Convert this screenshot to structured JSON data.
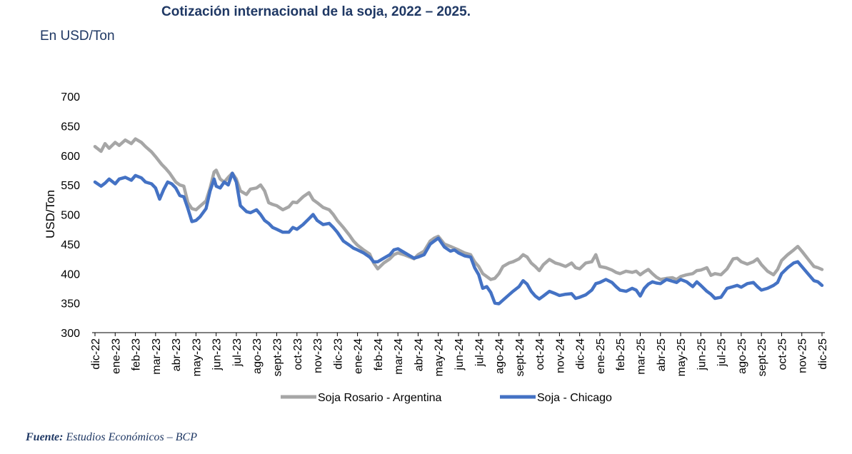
{
  "header": {
    "title": "Cotización internacional de la soja, 2022 – 2025.",
    "subtitle": "En USD/Ton"
  },
  "footer": {
    "source_label": "Fuente:",
    "source_text": " Estudios Económicos – BCP"
  },
  "chart_data": {
    "type": "line",
    "title": "",
    "xlabel": "",
    "ylabel": "USD/Ton",
    "ylim": [
      300,
      700
    ],
    "yticks": [
      300,
      350,
      400,
      450,
      500,
      550,
      600,
      650,
      700
    ],
    "grid": false,
    "legend_position": "bottom",
    "x_categories": [
      "dic-22",
      "ene-23",
      "feb-23",
      "mar-23",
      "abr-23",
      "may-23",
      "jun-23",
      "jul-23",
      "ago-23",
      "sept-23",
      "oct-23",
      "nov-23",
      "dic-23",
      "ene-24",
      "feb-24",
      "mar-24",
      "abr-24",
      "may-24",
      "jun-24",
      "jul-24",
      "ago-24",
      "sept-24",
      "oct-24",
      "nov-24",
      "dic-24",
      "ene-25",
      "feb-25",
      "mar-25",
      "abr-25",
      "may-25",
      "jun-25",
      "jul-25",
      "ago-25",
      "sept-25",
      "oct-25",
      "nov-25",
      "dic-25"
    ],
    "series": [
      {
        "name": "Soja Rosario - Argentina",
        "color": "#a6a6a6",
        "values": [
          [
            0,
            615
          ],
          [
            0.3,
            607
          ],
          [
            0.5,
            620
          ],
          [
            0.7,
            612
          ],
          [
            1,
            622
          ],
          [
            1.2,
            617
          ],
          [
            1.5,
            626
          ],
          [
            1.8,
            620
          ],
          [
            2,
            628
          ],
          [
            2.3,
            622
          ],
          [
            2.5,
            615
          ],
          [
            2.8,
            606
          ],
          [
            3,
            598
          ],
          [
            3.3,
            585
          ],
          [
            3.5,
            578
          ],
          [
            3.7,
            570
          ],
          [
            4,
            555
          ],
          [
            4.2,
            550
          ],
          [
            4.4,
            548
          ],
          [
            4.6,
            520
          ],
          [
            4.8,
            510
          ],
          [
            5,
            508
          ],
          [
            5.2,
            514
          ],
          [
            5.5,
            523
          ],
          [
            5.7,
            545
          ],
          [
            5.9,
            572
          ],
          [
            6,
            575
          ],
          [
            6.2,
            560
          ],
          [
            6.4,
            555
          ],
          [
            6.6,
            563
          ],
          [
            6.8,
            570
          ],
          [
            7,
            560
          ],
          [
            7.2,
            540
          ],
          [
            7.5,
            534
          ],
          [
            7.7,
            543
          ],
          [
            8,
            545
          ],
          [
            8.2,
            550
          ],
          [
            8.4,
            540
          ],
          [
            8.6,
            520
          ],
          [
            8.8,
            517
          ],
          [
            9,
            515
          ],
          [
            9.3,
            508
          ],
          [
            9.6,
            513
          ],
          [
            9.8,
            521
          ],
          [
            10,
            520
          ],
          [
            10.3,
            530
          ],
          [
            10.6,
            537
          ],
          [
            10.8,
            525
          ],
          [
            11,
            520
          ],
          [
            11.3,
            512
          ],
          [
            11.6,
            508
          ],
          [
            11.8,
            500
          ],
          [
            12,
            490
          ],
          [
            12.3,
            478
          ],
          [
            12.6,
            465
          ],
          [
            12.8,
            455
          ],
          [
            13,
            448
          ],
          [
            13.3,
            440
          ],
          [
            13.6,
            433
          ],
          [
            13.8,
            418
          ],
          [
            14,
            408
          ],
          [
            14.3,
            418
          ],
          [
            14.6,
            425
          ],
          [
            14.8,
            432
          ],
          [
            15,
            435
          ],
          [
            15.3,
            432
          ],
          [
            15.6,
            428
          ],
          [
            15.8,
            425
          ],
          [
            16,
            432
          ],
          [
            16.3,
            438
          ],
          [
            16.6,
            455
          ],
          [
            16.8,
            460
          ],
          [
            17,
            463
          ],
          [
            17.3,
            450
          ],
          [
            17.6,
            446
          ],
          [
            17.8,
            443
          ],
          [
            18,
            440
          ],
          [
            18.3,
            435
          ],
          [
            18.6,
            432
          ],
          [
            18.8,
            420
          ],
          [
            19,
            412
          ],
          [
            19.2,
            400
          ],
          [
            19.4,
            395
          ],
          [
            19.6,
            390
          ],
          [
            19.8,
            392
          ],
          [
            20,
            400
          ],
          [
            20.2,
            412
          ],
          [
            20.5,
            418
          ],
          [
            20.7,
            420
          ],
          [
            21,
            425
          ],
          [
            21.2,
            432
          ],
          [
            21.4,
            428
          ],
          [
            21.6,
            418
          ],
          [
            21.8,
            412
          ],
          [
            22,
            405
          ],
          [
            22.2,
            415
          ],
          [
            22.5,
            424
          ],
          [
            22.8,
            418
          ],
          [
            23,
            416
          ],
          [
            23.3,
            412
          ],
          [
            23.6,
            418
          ],
          [
            23.8,
            410
          ],
          [
            24,
            408
          ],
          [
            24.3,
            418
          ],
          [
            24.6,
            420
          ],
          [
            24.8,
            432
          ],
          [
            25,
            412
          ],
          [
            25.3,
            410
          ],
          [
            25.6,
            406
          ],
          [
            25.8,
            402
          ],
          [
            26,
            400
          ],
          [
            26.3,
            404
          ],
          [
            26.6,
            402
          ],
          [
            26.8,
            404
          ],
          [
            27,
            398
          ],
          [
            27.2,
            403
          ],
          [
            27.4,
            407
          ],
          [
            27.6,
            400
          ],
          [
            27.8,
            394
          ],
          [
            28,
            390
          ],
          [
            28.3,
            392
          ],
          [
            28.6,
            393
          ],
          [
            28.8,
            390
          ],
          [
            29,
            395
          ],
          [
            29.3,
            398
          ],
          [
            29.6,
            400
          ],
          [
            29.8,
            405
          ],
          [
            30,
            406
          ],
          [
            30.3,
            410
          ],
          [
            30.5,
            397
          ],
          [
            30.7,
            400
          ],
          [
            31,
            398
          ],
          [
            31.3,
            408
          ],
          [
            31.6,
            425
          ],
          [
            31.8,
            426
          ],
          [
            32,
            420
          ],
          [
            32.3,
            416
          ],
          [
            32.6,
            420
          ],
          [
            32.8,
            425
          ],
          [
            33,
            415
          ],
          [
            33.3,
            404
          ],
          [
            33.6,
            398
          ],
          [
            33.8,
            407
          ],
          [
            34,
            422
          ],
          [
            34.3,
            432
          ],
          [
            34.6,
            440
          ],
          [
            34.8,
            446
          ],
          [
            35,
            438
          ],
          [
            35.3,
            425
          ],
          [
            35.6,
            412
          ],
          [
            35.8,
            410
          ],
          [
            36,
            407
          ]
        ]
      },
      {
        "name": "Soja - Chicago",
        "color": "#4472c4",
        "values": [
          [
            0,
            555
          ],
          [
            0.3,
            548
          ],
          [
            0.5,
            553
          ],
          [
            0.7,
            560
          ],
          [
            1,
            552
          ],
          [
            1.2,
            560
          ],
          [
            1.5,
            563
          ],
          [
            1.8,
            558
          ],
          [
            2,
            566
          ],
          [
            2.3,
            562
          ],
          [
            2.5,
            555
          ],
          [
            2.8,
            552
          ],
          [
            3,
            545
          ],
          [
            3.2,
            526
          ],
          [
            3.4,
            542
          ],
          [
            3.6,
            555
          ],
          [
            3.8,
            552
          ],
          [
            4,
            545
          ],
          [
            4.2,
            532
          ],
          [
            4.4,
            530
          ],
          [
            4.6,
            510
          ],
          [
            4.8,
            488
          ],
          [
            5,
            490
          ],
          [
            5.2,
            496
          ],
          [
            5.5,
            510
          ],
          [
            5.7,
            540
          ],
          [
            5.9,
            560
          ],
          [
            6,
            548
          ],
          [
            6.2,
            545
          ],
          [
            6.4,
            555
          ],
          [
            6.6,
            550
          ],
          [
            6.8,
            570
          ],
          [
            7,
            555
          ],
          [
            7.2,
            515
          ],
          [
            7.5,
            505
          ],
          [
            7.7,
            503
          ],
          [
            8,
            508
          ],
          [
            8.2,
            500
          ],
          [
            8.4,
            490
          ],
          [
            8.6,
            485
          ],
          [
            8.8,
            478
          ],
          [
            9,
            475
          ],
          [
            9.3,
            470
          ],
          [
            9.6,
            470
          ],
          [
            9.8,
            478
          ],
          [
            10,
            475
          ],
          [
            10.3,
            483
          ],
          [
            10.6,
            493
          ],
          [
            10.8,
            500
          ],
          [
            11,
            490
          ],
          [
            11.3,
            483
          ],
          [
            11.6,
            485
          ],
          [
            11.8,
            478
          ],
          [
            12,
            470
          ],
          [
            12.3,
            455
          ],
          [
            12.6,
            448
          ],
          [
            12.8,
            443
          ],
          [
            13,
            440
          ],
          [
            13.3,
            435
          ],
          [
            13.6,
            428
          ],
          [
            13.8,
            420
          ],
          [
            14,
            420
          ],
          [
            14.3,
            426
          ],
          [
            14.6,
            432
          ],
          [
            14.8,
            440
          ],
          [
            15,
            442
          ],
          [
            15.3,
            436
          ],
          [
            15.6,
            430
          ],
          [
            15.8,
            426
          ],
          [
            16,
            428
          ],
          [
            16.3,
            432
          ],
          [
            16.6,
            450
          ],
          [
            16.8,
            455
          ],
          [
            17,
            460
          ],
          [
            17.3,
            445
          ],
          [
            17.6,
            438
          ],
          [
            17.8,
            440
          ],
          [
            18,
            435
          ],
          [
            18.3,
            430
          ],
          [
            18.6,
            428
          ],
          [
            18.8,
            410
          ],
          [
            19,
            398
          ],
          [
            19.2,
            375
          ],
          [
            19.4,
            378
          ],
          [
            19.6,
            368
          ],
          [
            19.8,
            350
          ],
          [
            20,
            349
          ],
          [
            20.2,
            355
          ],
          [
            20.5,
            364
          ],
          [
            20.7,
            370
          ],
          [
            21,
            378
          ],
          [
            21.2,
            388
          ],
          [
            21.4,
            382
          ],
          [
            21.6,
            370
          ],
          [
            21.8,
            362
          ],
          [
            22,
            357
          ],
          [
            22.2,
            362
          ],
          [
            22.5,
            370
          ],
          [
            22.8,
            366
          ],
          [
            23,
            363
          ],
          [
            23.3,
            365
          ],
          [
            23.6,
            366
          ],
          [
            23.8,
            358
          ],
          [
            24,
            360
          ],
          [
            24.3,
            364
          ],
          [
            24.6,
            372
          ],
          [
            24.8,
            383
          ],
          [
            25,
            385
          ],
          [
            25.3,
            390
          ],
          [
            25.6,
            385
          ],
          [
            25.8,
            378
          ],
          [
            26,
            372
          ],
          [
            26.3,
            370
          ],
          [
            26.6,
            375
          ],
          [
            26.8,
            372
          ],
          [
            27,
            362
          ],
          [
            27.2,
            375
          ],
          [
            27.4,
            382
          ],
          [
            27.6,
            386
          ],
          [
            27.8,
            384
          ],
          [
            28,
            383
          ],
          [
            28.3,
            390
          ],
          [
            28.6,
            387
          ],
          [
            28.8,
            385
          ],
          [
            29,
            390
          ],
          [
            29.3,
            386
          ],
          [
            29.6,
            378
          ],
          [
            29.8,
            386
          ],
          [
            30,
            380
          ],
          [
            30.3,
            370
          ],
          [
            30.5,
            365
          ],
          [
            30.7,
            358
          ],
          [
            31,
            360
          ],
          [
            31.3,
            375
          ],
          [
            31.6,
            378
          ],
          [
            31.8,
            380
          ],
          [
            32,
            377
          ],
          [
            32.3,
            383
          ],
          [
            32.6,
            385
          ],
          [
            32.8,
            378
          ],
          [
            33,
            372
          ],
          [
            33.3,
            375
          ],
          [
            33.6,
            380
          ],
          [
            33.8,
            385
          ],
          [
            34,
            400
          ],
          [
            34.3,
            410
          ],
          [
            34.6,
            418
          ],
          [
            34.8,
            420
          ],
          [
            35,
            412
          ],
          [
            35.3,
            400
          ],
          [
            35.6,
            388
          ],
          [
            35.8,
            386
          ],
          [
            36,
            380
          ]
        ]
      }
    ]
  }
}
